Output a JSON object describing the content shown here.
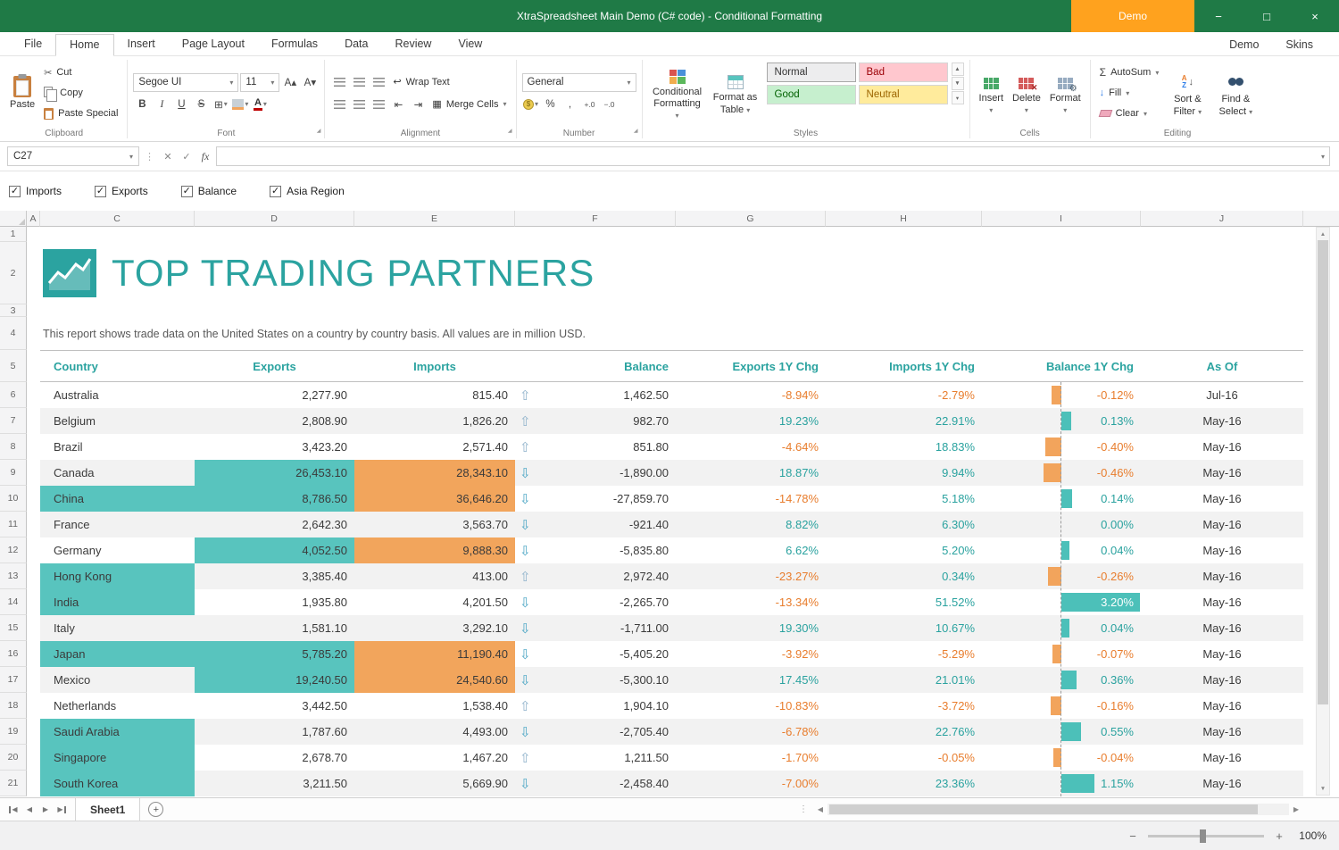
{
  "colors": {
    "titlebar": "#1F7A46",
    "demo_tab": "#FFA21E",
    "accent_teal": "#2BA3A0",
    "teal_fill": "#58C4BE",
    "orange_fill": "#F2A55C",
    "neg_text": "#E87D2D",
    "pos_text": "#2AA29F",
    "bar_neg": "#F2A45C",
    "bar_pos": "#4CC0B9",
    "row_band": "#F2F2F2"
  },
  "icons": {
    "minimize": "−",
    "maximize": "□",
    "close": "×",
    "dropdown": "▾",
    "check": "✓",
    "cancel": "✕",
    "scissors": "✂",
    "sigma": "Σ",
    "up": "⇧",
    "down": "⇩",
    "gear": "⚙",
    "bold": "B",
    "italic": "I",
    "underline": "U",
    "strike": "S",
    "font_color": "A",
    "borders": "⊞",
    "percent": "%",
    "comma": ",",
    "inc_decimal": "+.0",
    "dec_decimal": "−.0",
    "currency": "$",
    "wrap": "↩",
    "merge": "▦",
    "indent_dec": "⇤",
    "indent_inc": "⇥",
    "font_up": "A▴",
    "font_down": "A▾",
    "prev": "◀",
    "next": "▶",
    "up_small": "▲",
    "down_small": "▼",
    "plus": "+",
    "minus": "−",
    "more": "⋮",
    "fill_arrow": "↓",
    "sort_a": "A",
    "sort_z": "Z",
    "arrow_down": "↓"
  },
  "titlebar": {
    "title": "XtraSpreadsheet Main Demo (C# code) - Conditional Formatting",
    "demo_button": "Demo"
  },
  "ribbon": {
    "tabs": [
      "File",
      "Home",
      "Insert",
      "Page Layout",
      "Formulas",
      "Data",
      "Review",
      "View"
    ],
    "active_tab": "Home",
    "right_tabs": [
      "Demo",
      "Skins"
    ],
    "clipboard": {
      "label": "Clipboard",
      "paste": "Paste",
      "cut": "Cut",
      "copy": "Copy",
      "paste_special": "Paste Special"
    },
    "font": {
      "label": "Font",
      "font_name": "Segoe UI",
      "font_size": "11"
    },
    "alignment": {
      "label": "Alignment",
      "wrap_text": "Wrap Text",
      "merge_cells": "Merge Cells"
    },
    "number": {
      "label": "Number",
      "format": "General"
    },
    "styles": {
      "label": "Styles",
      "conditional_formatting": "Conditional Formatting",
      "format_as_table": "Format as Table",
      "gallery": [
        {
          "name": "Normal"
        },
        {
          "name": "Bad"
        },
        {
          "name": "Good"
        },
        {
          "name": "Neutral"
        }
      ]
    },
    "cells": {
      "label": "Cells",
      "insert": "Insert",
      "delete": "Delete",
      "format": "Format"
    },
    "editing": {
      "label": "Editing",
      "autosum": "AutoSum",
      "fill": "Fill",
      "clear": "Clear",
      "sort_filter": "Sort & Filter",
      "find_select": "Find & Select"
    }
  },
  "formula_bar": {
    "name_box": "C27",
    "fx": "fx"
  },
  "filters": [
    {
      "label": "Imports",
      "checked": true
    },
    {
      "label": "Exports",
      "checked": true
    },
    {
      "label": "Balance",
      "checked": true
    },
    {
      "label": "Asia Region",
      "checked": true
    }
  ],
  "sheet": {
    "col_letters": [
      "A",
      "C",
      "D",
      "E",
      "F",
      "G",
      "H",
      "I",
      "J"
    ],
    "title": "TOP TRADING PARTNERS",
    "description": "This report shows trade data on the United States on a country by country basis. All values are in million USD.",
    "columns": [
      "Country",
      "Exports",
      "Imports",
      "Balance",
      "Exports 1Y Chg",
      "Imports 1Y Chg",
      "Balance 1Y Chg",
      "As Of"
    ],
    "rows": [
      {
        "country": "Australia",
        "asia": false,
        "exports": "2,277.90",
        "exports_hl": false,
        "imports": "815.40",
        "imports_hl": false,
        "balance": "1,462.50",
        "arrow": "up",
        "exports_chg": "-8.94%",
        "imports_chg": "-2.79%",
        "balance_chg": "-0.12%",
        "as_of": "Jul-16"
      },
      {
        "country": "Belgium",
        "asia": false,
        "exports": "2,808.90",
        "exports_hl": false,
        "imports": "1,826.20",
        "imports_hl": false,
        "balance": "982.70",
        "arrow": "up",
        "exports_chg": "19.23%",
        "imports_chg": "22.91%",
        "balance_chg": "0.13%",
        "as_of": "May-16"
      },
      {
        "country": "Brazil",
        "asia": false,
        "exports": "3,423.20",
        "exports_hl": false,
        "imports": "2,571.40",
        "imports_hl": false,
        "balance": "851.80",
        "arrow": "up",
        "exports_chg": "-4.64%",
        "imports_chg": "18.83%",
        "balance_chg": "-0.40%",
        "as_of": "May-16"
      },
      {
        "country": "Canada",
        "asia": false,
        "exports": "26,453.10",
        "exports_hl": true,
        "imports": "28,343.10",
        "imports_hl": true,
        "balance": "-1,890.00",
        "arrow": "down",
        "exports_chg": "18.87%",
        "imports_chg": "9.94%",
        "balance_chg": "-0.46%",
        "as_of": "May-16"
      },
      {
        "country": "China",
        "asia": true,
        "exports": "8,786.50",
        "exports_hl": true,
        "imports": "36,646.20",
        "imports_hl": true,
        "balance": "-27,859.70",
        "arrow": "down",
        "exports_chg": "-14.78%",
        "imports_chg": "5.18%",
        "balance_chg": "0.14%",
        "as_of": "May-16"
      },
      {
        "country": "France",
        "asia": false,
        "exports": "2,642.30",
        "exports_hl": false,
        "imports": "3,563.70",
        "imports_hl": false,
        "balance": "-921.40",
        "arrow": "down",
        "exports_chg": "8.82%",
        "imports_chg": "6.30%",
        "balance_chg": "0.00%",
        "as_of": "May-16"
      },
      {
        "country": "Germany",
        "asia": false,
        "exports": "4,052.50",
        "exports_hl": true,
        "imports": "9,888.30",
        "imports_hl": true,
        "balance": "-5,835.80",
        "arrow": "down",
        "exports_chg": "6.62%",
        "imports_chg": "5.20%",
        "balance_chg": "0.04%",
        "as_of": "May-16"
      },
      {
        "country": "Hong Kong",
        "asia": true,
        "exports": "3,385.40",
        "exports_hl": false,
        "imports": "413.00",
        "imports_hl": false,
        "balance": "2,972.40",
        "arrow": "up",
        "exports_chg": "-23.27%",
        "imports_chg": "0.34%",
        "balance_chg": "-0.26%",
        "as_of": "May-16"
      },
      {
        "country": "India",
        "asia": true,
        "exports": "1,935.80",
        "exports_hl": false,
        "imports": "4,201.50",
        "imports_hl": false,
        "balance": "-2,265.70",
        "arrow": "down",
        "exports_chg": "-13.34%",
        "imports_chg": "51.52%",
        "balance_chg": "3.20%",
        "as_of": "May-16"
      },
      {
        "country": "Italy",
        "asia": false,
        "exports": "1,581.10",
        "exports_hl": false,
        "imports": "3,292.10",
        "imports_hl": false,
        "balance": "-1,711.00",
        "arrow": "down",
        "exports_chg": "19.30%",
        "imports_chg": "10.67%",
        "balance_chg": "0.04%",
        "as_of": "May-16"
      },
      {
        "country": "Japan",
        "asia": true,
        "exports": "5,785.20",
        "exports_hl": true,
        "imports": "11,190.40",
        "imports_hl": true,
        "balance": "-5,405.20",
        "arrow": "down",
        "exports_chg": "-3.92%",
        "imports_chg": "-5.29%",
        "balance_chg": "-0.07%",
        "as_of": "May-16"
      },
      {
        "country": "Mexico",
        "asia": false,
        "exports": "19,240.50",
        "exports_hl": true,
        "imports": "24,540.60",
        "imports_hl": true,
        "balance": "-5,300.10",
        "arrow": "down",
        "exports_chg": "17.45%",
        "imports_chg": "21.01%",
        "balance_chg": "0.36%",
        "as_of": "May-16"
      },
      {
        "country": "Netherlands",
        "asia": false,
        "exports": "3,442.50",
        "exports_hl": false,
        "imports": "1,538.40",
        "imports_hl": false,
        "balance": "1,904.10",
        "arrow": "up",
        "exports_chg": "-10.83%",
        "imports_chg": "-3.72%",
        "balance_chg": "-0.16%",
        "as_of": "May-16"
      },
      {
        "country": "Saudi Arabia",
        "asia": true,
        "exports": "1,787.60",
        "exports_hl": false,
        "imports": "4,493.00",
        "imports_hl": false,
        "balance": "-2,705.40",
        "arrow": "down",
        "exports_chg": "-6.78%",
        "imports_chg": "22.76%",
        "balance_chg": "0.55%",
        "as_of": "May-16"
      },
      {
        "country": "Singapore",
        "asia": true,
        "exports": "2,678.70",
        "exports_hl": false,
        "imports": "1,467.20",
        "imports_hl": false,
        "balance": "1,211.50",
        "arrow": "up",
        "exports_chg": "-1.70%",
        "imports_chg": "-0.05%",
        "balance_chg": "-0.04%",
        "as_of": "May-16"
      },
      {
        "country": "South Korea",
        "asia": true,
        "exports": "3,211.50",
        "exports_hl": false,
        "imports": "5,669.90",
        "imports_hl": false,
        "balance": "-2,458.40",
        "arrow": "down",
        "exports_chg": "-7.00%",
        "imports_chg": "23.36%",
        "balance_chg": "1.15%",
        "as_of": "May-16"
      }
    ]
  },
  "tab_bar": {
    "sheet_tab": "Sheet1"
  },
  "status_bar": {
    "zoom": "100%"
  }
}
